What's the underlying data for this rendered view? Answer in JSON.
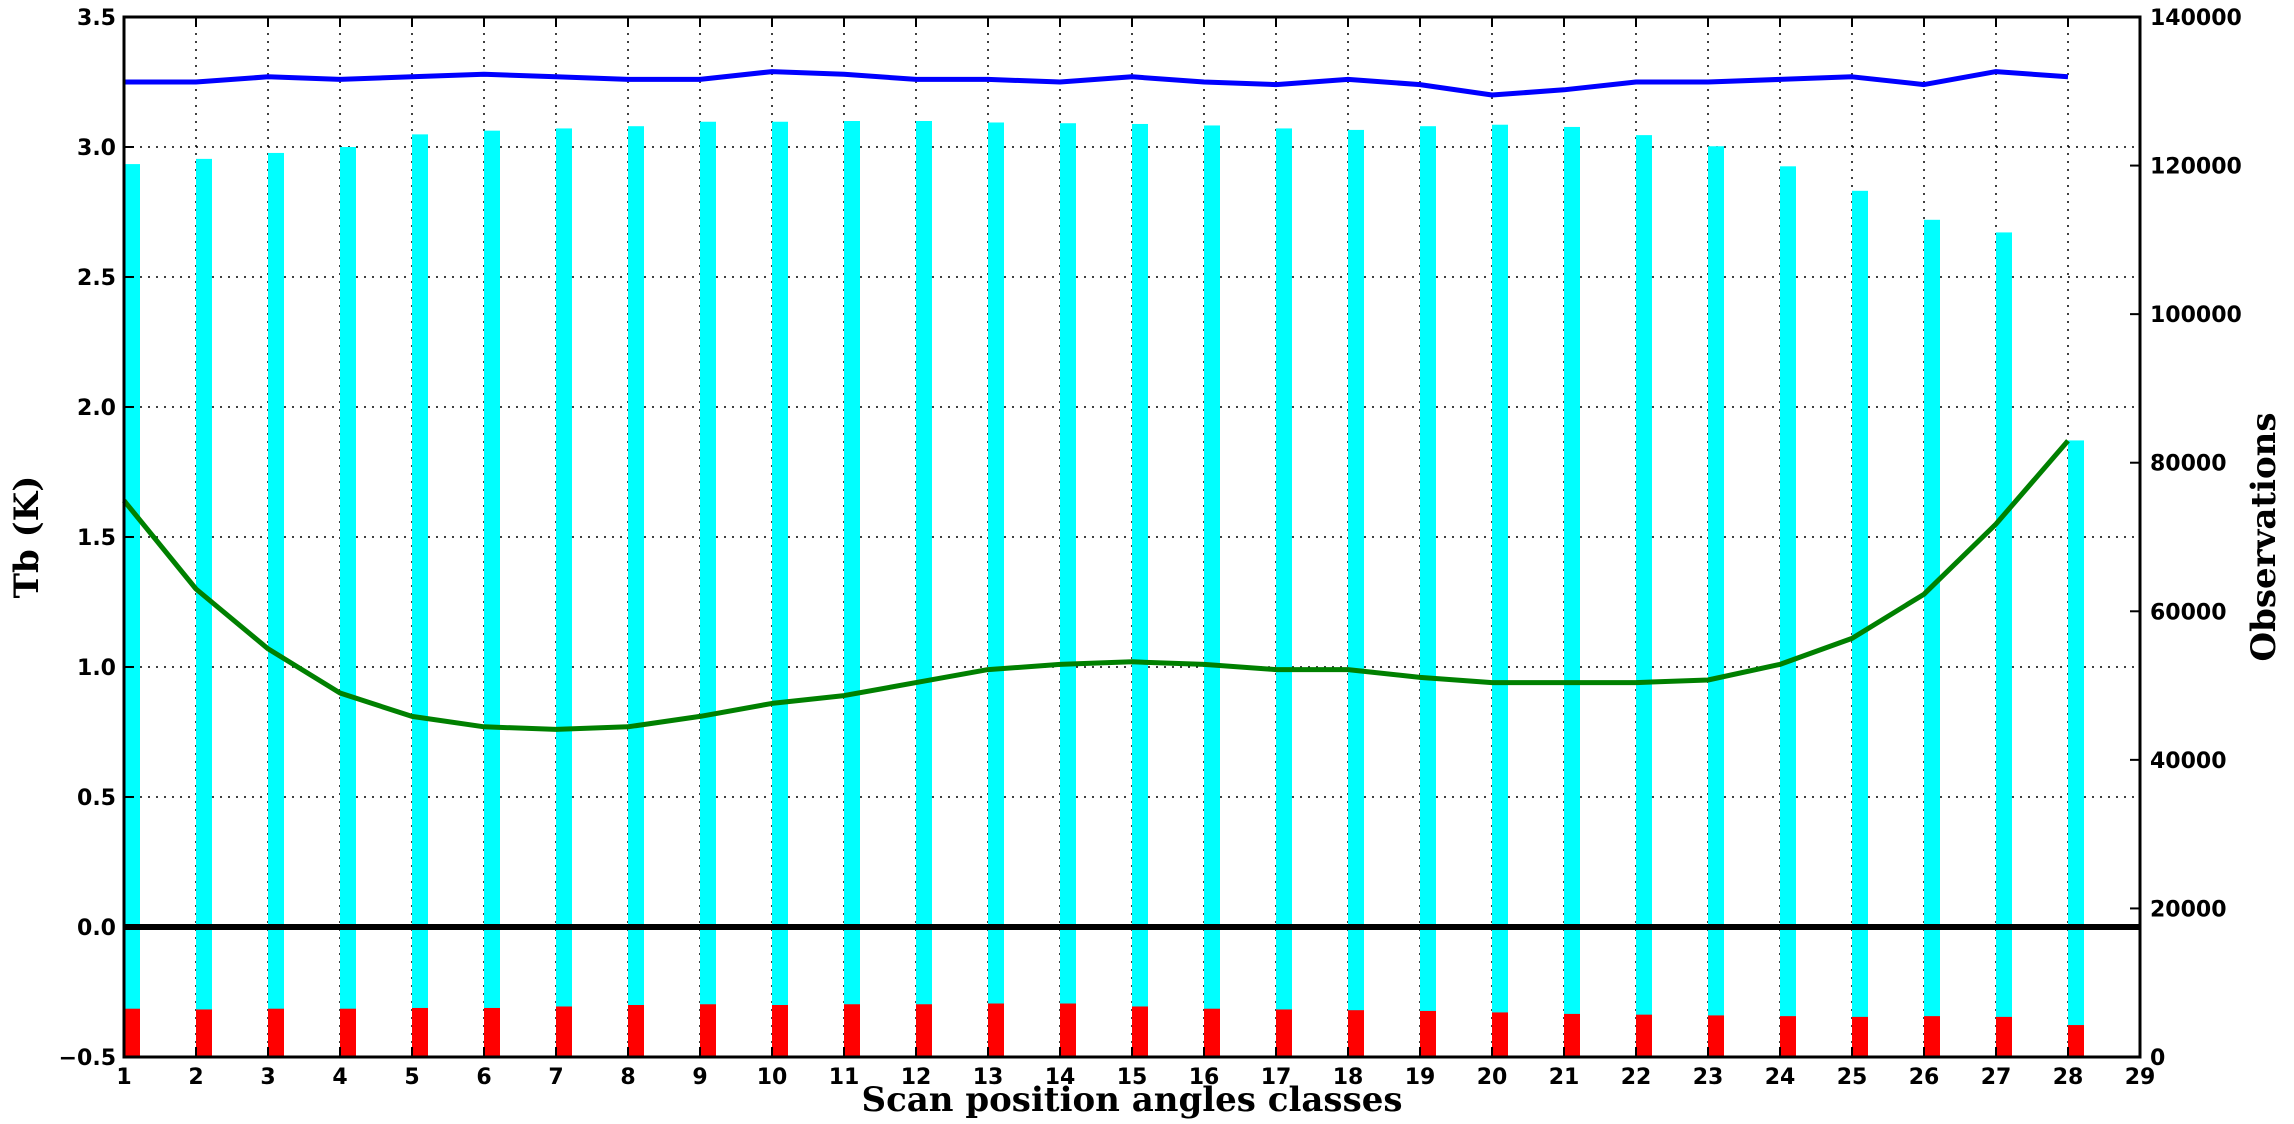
{
  "chart_data": {
    "type": "bar",
    "xlabel": "Scan position angles classes",
    "ylabel_left": "Tb (K)",
    "ylabel_right": "Observations",
    "x_ticks": [
      1,
      2,
      3,
      4,
      5,
      6,
      7,
      8,
      9,
      10,
      11,
      12,
      13,
      14,
      15,
      16,
      17,
      18,
      19,
      20,
      21,
      22,
      23,
      24,
      25,
      26,
      27,
      28,
      29
    ],
    "xlim": [
      1,
      29
    ],
    "ylim_left": [
      -0.5,
      3.5
    ],
    "ylim_right": [
      0,
      140000
    ],
    "y_ticks_left": [
      "3.5",
      "3.0",
      "2.5",
      "2.0",
      "1.5",
      "1.0",
      "0.5",
      "0.0",
      "−0.5"
    ],
    "y_ticks_left_values": [
      3.5,
      3.0,
      2.5,
      2.0,
      1.5,
      1.0,
      0.5,
      0.0,
      -0.5
    ],
    "y_ticks_right": [
      "140000",
      "120000",
      "100000",
      "80000",
      "60000",
      "40000",
      "20000",
      "0"
    ],
    "y_ticks_right_values": [
      140000,
      120000,
      100000,
      80000,
      60000,
      40000,
      20000,
      0
    ],
    "grid": true,
    "categories": [
      1,
      2,
      3,
      4,
      5,
      6,
      7,
      8,
      9,
      10,
      11,
      12,
      13,
      14,
      15,
      16,
      17,
      18,
      19,
      20,
      21,
      22,
      23,
      24,
      25,
      26,
      27,
      28
    ],
    "series": [
      {
        "kind": "bar",
        "axis": "right",
        "color": "#00ffff",
        "values": [
          120200,
          120900,
          121700,
          122500,
          124200,
          124700,
          125000,
          125300,
          125900,
          125900,
          126000,
          126000,
          125800,
          125700,
          125600,
          125400,
          125000,
          124800,
          125300,
          125500,
          125200,
          124100,
          122600,
          119900,
          116600,
          112700,
          111000,
          83000
        ]
      },
      {
        "kind": "bar",
        "axis": "right",
        "color": "#ff0000",
        "values": [
          6500,
          6400,
          6500,
          6500,
          6600,
          6600,
          6800,
          7000,
          7100,
          7000,
          7100,
          7100,
          7200,
          7200,
          6800,
          6500,
          6400,
          6300,
          6200,
          6000,
          5800,
          5700,
          5600,
          5500,
          5400,
          5500,
          5400,
          4300
        ]
      },
      {
        "kind": "line",
        "axis": "left",
        "color": "#0000ff",
        "values": [
          3.25,
          3.25,
          3.27,
          3.26,
          3.27,
          3.28,
          3.27,
          3.26,
          3.26,
          3.29,
          3.28,
          3.26,
          3.26,
          3.25,
          3.27,
          3.25,
          3.24,
          3.26,
          3.24,
          3.2,
          3.22,
          3.25,
          3.25,
          3.26,
          3.27,
          3.24,
          3.29,
          3.27
        ]
      },
      {
        "kind": "line",
        "axis": "left",
        "color": "#008000",
        "values": [
          1.64,
          1.3,
          1.07,
          0.9,
          0.81,
          0.77,
          0.76,
          0.77,
          0.81,
          0.86,
          0.89,
          0.94,
          0.99,
          1.01,
          1.02,
          1.01,
          0.99,
          0.99,
          0.96,
          0.94,
          0.94,
          0.94,
          0.95,
          1.01,
          1.11,
          1.28,
          1.55,
          1.87
        ]
      }
    ],
    "zero_line_color": "#000000"
  }
}
